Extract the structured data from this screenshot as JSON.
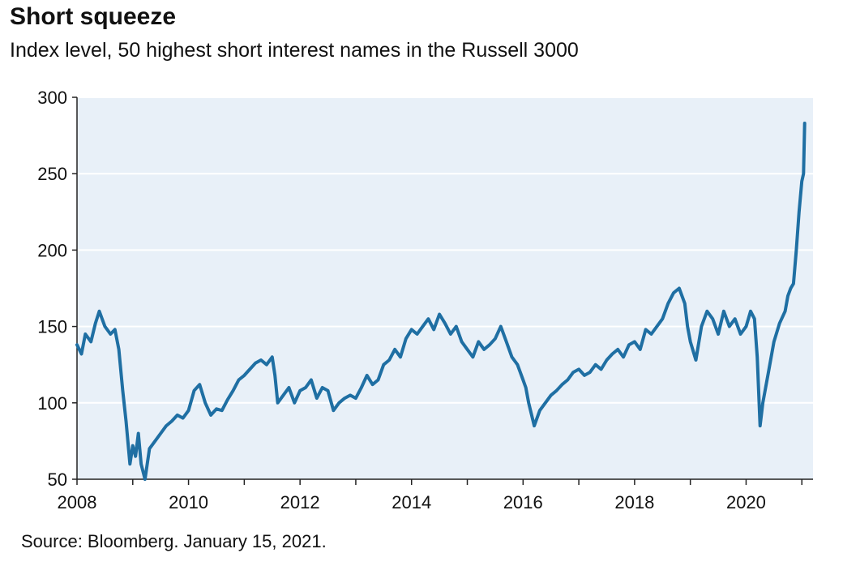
{
  "header": {
    "title": "Short squeeze",
    "subtitle": "Index level, 50 highest short interest names in the Russell 3000"
  },
  "footer": {
    "source": "Source: Bloomberg. January 15, 2021."
  },
  "colors": {
    "line": "#1f6fa3",
    "plot_background": "#e8f0f8",
    "gridline": "#ffffff",
    "axis": "#222222"
  },
  "chart_data": {
    "type": "line",
    "title": "Short squeeze",
    "subtitle": "Index level, 50 highest short interest names in the Russell 3000",
    "xlabel": "",
    "ylabel": "",
    "xlim": [
      2008,
      2021.2
    ],
    "ylim": [
      50,
      300
    ],
    "x_ticks": [
      2008,
      2010,
      2012,
      2014,
      2016,
      2018,
      2020
    ],
    "x_tick_labels": [
      "2008",
      "2010",
      "2012",
      "2014",
      "2016",
      "2018",
      "2020"
    ],
    "y_ticks": [
      50,
      100,
      150,
      200,
      250,
      300
    ],
    "y_tick_labels": [
      "50",
      "100",
      "150",
      "200",
      "250",
      "300"
    ],
    "grid": "horizontal",
    "legend": "none",
    "series": [
      {
        "x": [
          2008.0,
          2008.08,
          2008.15,
          2008.25,
          2008.33,
          2008.4,
          2008.5,
          2008.6,
          2008.68,
          2008.75,
          2008.82,
          2008.88,
          2008.95,
          2009.0,
          2009.05,
          2009.1,
          2009.15,
          2009.22,
          2009.3,
          2009.4,
          2009.5,
          2009.6,
          2009.7,
          2009.8,
          2009.9,
          2010.0,
          2010.1,
          2010.2,
          2010.3,
          2010.4,
          2010.5,
          2010.6,
          2010.7,
          2010.8,
          2010.9,
          2011.0,
          2011.1,
          2011.2,
          2011.3,
          2011.4,
          2011.5,
          2011.55,
          2011.6,
          2011.7,
          2011.8,
          2011.9,
          2012.0,
          2012.1,
          2012.2,
          2012.3,
          2012.4,
          2012.5,
          2012.6,
          2012.7,
          2012.8,
          2012.9,
          2013.0,
          2013.1,
          2013.2,
          2013.3,
          2013.4,
          2013.5,
          2013.6,
          2013.7,
          2013.8,
          2013.9,
          2014.0,
          2014.1,
          2014.2,
          2014.3,
          2014.4,
          2014.5,
          2014.6,
          2014.7,
          2014.8,
          2014.9,
          2015.0,
          2015.1,
          2015.2,
          2015.3,
          2015.4,
          2015.5,
          2015.6,
          2015.7,
          2015.8,
          2015.9,
          2016.0,
          2016.05,
          2016.1,
          2016.2,
          2016.3,
          2016.4,
          2016.5,
          2016.6,
          2016.7,
          2016.8,
          2016.9,
          2017.0,
          2017.1,
          2017.2,
          2017.3,
          2017.4,
          2017.5,
          2017.6,
          2017.7,
          2017.8,
          2017.9,
          2018.0,
          2018.1,
          2018.2,
          2018.3,
          2018.4,
          2018.5,
          2018.6,
          2018.7,
          2018.8,
          2018.9,
          2018.95,
          2019.0,
          2019.1,
          2019.2,
          2019.3,
          2019.4,
          2019.5,
          2019.6,
          2019.7,
          2019.8,
          2019.9,
          2020.0,
          2020.08,
          2020.15,
          2020.2,
          2020.25,
          2020.3,
          2020.4,
          2020.5,
          2020.6,
          2020.7,
          2020.75,
          2020.8,
          2020.85,
          2020.9,
          2020.95,
          2021.0,
          2021.03,
          2021.05
        ],
        "y": [
          138,
          132,
          145,
          140,
          152,
          160,
          150,
          145,
          148,
          135,
          108,
          88,
          60,
          72,
          65,
          80,
          60,
          50,
          70,
          75,
          80,
          85,
          88,
          92,
          90,
          95,
          108,
          112,
          100,
          92,
          96,
          95,
          102,
          108,
          115,
          118,
          122,
          126,
          128,
          125,
          130,
          118,
          100,
          105,
          110,
          100,
          108,
          110,
          115,
          103,
          110,
          108,
          95,
          100,
          103,
          105,
          103,
          110,
          118,
          112,
          115,
          125,
          128,
          135,
          130,
          142,
          148,
          145,
          150,
          155,
          148,
          158,
          152,
          145,
          150,
          140,
          135,
          130,
          140,
          135,
          138,
          142,
          150,
          140,
          130,
          125,
          115,
          110,
          100,
          85,
          95,
          100,
          105,
          108,
          112,
          115,
          120,
          122,
          118,
          120,
          125,
          122,
          128,
          132,
          135,
          130,
          138,
          140,
          135,
          148,
          145,
          150,
          155,
          165,
          172,
          175,
          165,
          150,
          140,
          128,
          150,
          160,
          155,
          145,
          160,
          150,
          155,
          145,
          150,
          160,
          155,
          130,
          85,
          100,
          120,
          140,
          152,
          160,
          170,
          175,
          178,
          200,
          225,
          245,
          250,
          283
        ]
      }
    ]
  }
}
